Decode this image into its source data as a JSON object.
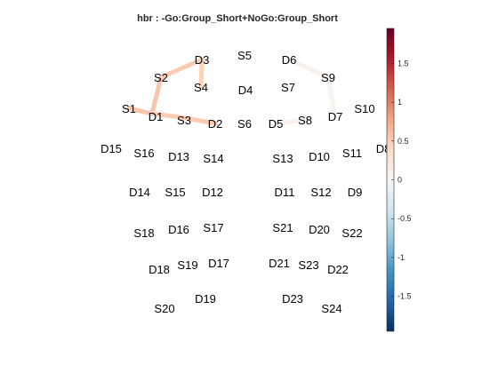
{
  "title": "hbr : -Go:Group_Short+NoGo:Group_Short",
  "nodes": [
    {
      "label": "S1"
    },
    {
      "label": "D1"
    },
    {
      "label": "S2"
    },
    {
      "label": "D3"
    },
    {
      "label": "S4"
    },
    {
      "label": "S3"
    },
    {
      "label": "D2"
    },
    {
      "label": "S5"
    },
    {
      "label": "D4"
    },
    {
      "label": "S6"
    },
    {
      "label": "D6"
    },
    {
      "label": "S7"
    },
    {
      "label": "S9"
    },
    {
      "label": "D5"
    },
    {
      "label": "S8"
    },
    {
      "label": "D7"
    },
    {
      "label": "S10"
    },
    {
      "label": "D8"
    },
    {
      "label": "D15"
    },
    {
      "label": "S16"
    },
    {
      "label": "D13"
    },
    {
      "label": "S14"
    },
    {
      "label": "S13"
    },
    {
      "label": "D10"
    },
    {
      "label": "S11"
    },
    {
      "label": "D14"
    },
    {
      "label": "S15"
    },
    {
      "label": "D12"
    },
    {
      "label": "D11"
    },
    {
      "label": "S12"
    },
    {
      "label": "D9"
    },
    {
      "label": "S18"
    },
    {
      "label": "D16"
    },
    {
      "label": "S17"
    },
    {
      "label": "S21"
    },
    {
      "label": "D20"
    },
    {
      "label": "S22"
    },
    {
      "label": "D18"
    },
    {
      "label": "S19"
    },
    {
      "label": "D17"
    },
    {
      "label": "D21"
    },
    {
      "label": "S23"
    },
    {
      "label": "D22"
    },
    {
      "label": "S20"
    },
    {
      "label": "D19"
    },
    {
      "label": "D23"
    },
    {
      "label": "S24"
    }
  ],
  "channels": [
    {
      "from": "S1",
      "to": "D1",
      "value": 0.55
    },
    {
      "from": "D1",
      "to": "S2",
      "value": 0.55
    },
    {
      "from": "S2",
      "to": "D3",
      "value": 0.5
    },
    {
      "from": "D3",
      "to": "S4",
      "value": 0.45
    },
    {
      "from": "D1",
      "to": "S3",
      "value": 0.5
    },
    {
      "from": "S3",
      "to": "D2",
      "value": 0.5
    },
    {
      "from": "D5",
      "to": "S8",
      "value": 0.08
    },
    {
      "from": "S9",
      "to": "D6",
      "value": 0.08
    },
    {
      "from": "S9",
      "to": "D7",
      "value": 0.06
    }
  ],
  "colorbar": {
    "min": -1.95,
    "max": 1.95,
    "ticks": [
      "1.5",
      "1",
      "0.5",
      "0",
      "-0.5",
      "-1",
      "-1.5"
    ],
    "tick_values": [
      1.5,
      1,
      0.5,
      0,
      -0.5,
      -1,
      -1.5
    ],
    "colormap": [
      "#053061",
      "#2166ac",
      "#4393c3",
      "#92c5de",
      "#d1e5f0",
      "#f7f7f7",
      "#fddbc7",
      "#f4a582",
      "#d6604d",
      "#b2182b",
      "#67001f"
    ]
  }
}
